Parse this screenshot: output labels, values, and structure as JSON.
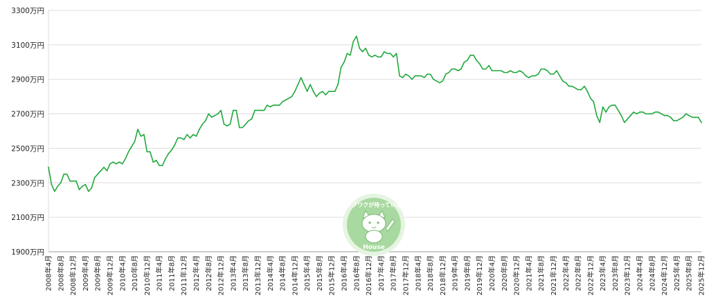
{
  "chart_data": {
    "type": "line",
    "title": "",
    "xlabel": "",
    "ylabel": "",
    "ylim": [
      1900,
      3300
    ],
    "y_ticks": [
      1900,
      2100,
      2300,
      2500,
      2700,
      2900,
      3100,
      3300
    ],
    "y_tick_labels": [
      "1900万円",
      "2100万円",
      "2300万円",
      "2500万円",
      "2700万円",
      "2900万円",
      "3100万円",
      "3300万円"
    ],
    "x_tick_labels": [
      "2008年4月",
      "2008年8月",
      "2008年12月",
      "2009年4月",
      "2009年8月",
      "2009年12月",
      "2010年4月",
      "2010年8月",
      "2010年12月",
      "2011年4月",
      "2011年8月",
      "2011年12月",
      "2012年4月",
      "2012年8月",
      "2012年12月",
      "2013年4月",
      "2013年8月",
      "2013年12月",
      "2014年4月",
      "2014年8月",
      "2014年12月",
      "2015年4月",
      "2015年8月",
      "2015年12月",
      "2016年4月",
      "2016年8月",
      "2016年12月",
      "2017年4月",
      "2017年8月",
      "2017年12月",
      "2018年4月",
      "2018年8月",
      "2018年12月",
      "2019年4月",
      "2019年8月",
      "2019年12月",
      "2020年4月",
      "2020年8月",
      "2020年12月",
      "2021年4月",
      "2021年8月",
      "2021年12月",
      "2022年4月",
      "2022年8月",
      "2022年12月",
      "2023年4月",
      "2023年8月",
      "2023年12月",
      "2024年4月",
      "2024年8月",
      "2024年12月",
      "2025年4月",
      "2025年8月",
      "2025年12月"
    ],
    "grid": true,
    "legend": "none",
    "line_color": "#20a83c",
    "series": [
      {
        "values": [
          2390,
          2290,
          2250,
          2280,
          2300,
          2350,
          2350,
          2310,
          2310,
          2310,
          2260,
          2280,
          2290,
          2250,
          2270,
          2330,
          2350,
          2370,
          2390,
          2370,
          2410,
          2420,
          2410,
          2420,
          2410,
          2440,
          2480,
          2510,
          2540,
          2610,
          2570,
          2580,
          2480,
          2480,
          2420,
          2430,
          2400,
          2400,
          2440,
          2470,
          2490,
          2520,
          2560,
          2560,
          2550,
          2580,
          2560,
          2580,
          2570,
          2610,
          2640,
          2660,
          2700,
          2680,
          2690,
          2700,
          2720,
          2640,
          2630,
          2640,
          2720,
          2720,
          2620,
          2620,
          2640,
          2660,
          2670,
          2720,
          2720,
          2720,
          2720,
          2750,
          2740,
          2750,
          2750,
          2750,
          2770,
          2780,
          2790,
          2800,
          2830,
          2870,
          2910,
          2870,
          2830,
          2870,
          2830,
          2800,
          2820,
          2830,
          2810,
          2830,
          2830,
          2830,
          2870,
          2970,
          3000,
          3050,
          3040,
          3120,
          3150,
          3080,
          3060,
          3080,
          3040,
          3030,
          3040,
          3030,
          3030,
          3060,
          3050,
          3050,
          3030,
          3050,
          2920,
          2910,
          2930,
          2920,
          2900,
          2920,
          2920,
          2920,
          2910,
          2930,
          2930,
          2900,
          2890,
          2880,
          2890,
          2930,
          2940,
          2960,
          2960,
          2950,
          2960,
          3000,
          3010,
          3040,
          3040,
          3010,
          2990,
          2960,
          2960,
          2980,
          2950,
          2950,
          2950,
          2950,
          2940,
          2940,
          2950,
          2940,
          2940,
          2950,
          2940,
          2920,
          2910,
          2920,
          2920,
          2930,
          2960,
          2960,
          2950,
          2930,
          2930,
          2950,
          2920,
          2890,
          2880,
          2860,
          2860,
          2850,
          2840,
          2840,
          2860,
          2830,
          2790,
          2770,
          2690,
          2650,
          2740,
          2710,
          2740,
          2750,
          2750,
          2720,
          2690,
          2650,
          2670,
          2690,
          2710,
          2700,
          2710,
          2710,
          2700,
          2700,
          2700,
          2710,
          2710,
          2700,
          2690,
          2690,
          2680,
          2660,
          2660,
          2670,
          2680,
          2700,
          2690,
          2680,
          2680,
          2680,
          2650
        ]
      }
    ]
  },
  "watermark": {
    "text_top": "ワクワクが待っている",
    "text_bottom": "House",
    "colors": {
      "bg": "#a8d9a0",
      "ring": "#e6f4e2",
      "cat": "#ffffff"
    }
  }
}
